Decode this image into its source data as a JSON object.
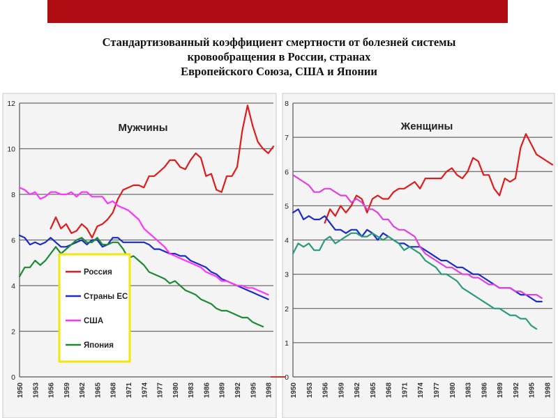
{
  "header": {
    "title_lines": [
      "Стандартизованный коэффициент смертности от болезней системы",
      "кровообращения в России, странах",
      "Европейского Союза, США и Японии"
    ]
  },
  "colors": {
    "Россия": "#e01b1b",
    "Страны ЕС": "#1a2bc8",
    "США": "#ff33ff",
    "Япония": "#1c8a30",
    "Россия_women": "#e01b1b",
    "Страны ЕС_women": "#1a2bc8",
    "США_women": "#e040e0",
    "Япония_women": "#2a9a7a"
  },
  "chart_data": [
    {
      "type": "line",
      "title": "Мужчины",
      "ylim": [
        0,
        12
      ],
      "yticks": [
        0,
        2,
        4,
        6,
        8,
        10,
        12
      ],
      "xlim": [
        1950,
        1999
      ],
      "xticks": [
        1950,
        1953,
        1956,
        1959,
        1962,
        1965,
        1968,
        1971,
        1974,
        1977,
        1980,
        1983,
        1986,
        1989,
        1992,
        1995,
        1998
      ],
      "grid": true,
      "legend": "inside-bottom-left",
      "series": [
        {
          "name": "Россия",
          "x": [
            1956,
            1957,
            1958,
            1959,
            1960,
            1961,
            1962,
            1963,
            1964,
            1965,
            1966,
            1967,
            1968,
            1969,
            1970,
            1971,
            1972,
            1973,
            1974,
            1975,
            1976,
            1977,
            1978,
            1979,
            1980,
            1981,
            1982,
            1983,
            1984,
            1985,
            1986,
            1987,
            1988,
            1989,
            1990,
            1991,
            1992,
            1993,
            1994,
            1995,
            1996,
            1997,
            1998,
            1999
          ],
          "values": [
            6.5,
            7.0,
            6.5,
            6.7,
            6.3,
            6.4,
            6.7,
            6.5,
            6.1,
            6.6,
            6.7,
            6.9,
            7.2,
            7.8,
            8.2,
            8.3,
            8.4,
            8.4,
            8.3,
            8.8,
            8.8,
            9.0,
            9.2,
            9.5,
            9.5,
            9.2,
            9.1,
            9.5,
            9.8,
            9.6,
            8.8,
            8.9,
            8.2,
            8.1,
            8.8,
            8.8,
            9.2,
            10.8,
            11.9,
            11.0,
            10.3,
            10.0,
            9.8,
            10.1
          ]
        },
        {
          "name": "Страны ЕС",
          "x": [
            1950,
            1951,
            1952,
            1953,
            1954,
            1955,
            1956,
            1957,
            1958,
            1959,
            1960,
            1961,
            1962,
            1963,
            1964,
            1965,
            1966,
            1967,
            1968,
            1969,
            1970,
            1971,
            1972,
            1973,
            1974,
            1975,
            1976,
            1977,
            1978,
            1979,
            1980,
            1981,
            1982,
            1983,
            1984,
            1985,
            1986,
            1987,
            1988,
            1989,
            1990,
            1991,
            1992,
            1993,
            1994,
            1995,
            1996,
            1997,
            1998
          ],
          "values": [
            6.2,
            6.1,
            5.8,
            5.9,
            5.8,
            5.9,
            6.1,
            5.9,
            5.7,
            5.7,
            5.8,
            5.9,
            6.0,
            5.8,
            6.0,
            6.0,
            5.7,
            5.8,
            6.1,
            6.1,
            5.9,
            5.9,
            5.9,
            5.9,
            5.9,
            5.8,
            5.6,
            5.6,
            5.5,
            5.4,
            5.4,
            5.3,
            5.3,
            5.1,
            5.0,
            4.9,
            4.8,
            4.6,
            4.5,
            4.3,
            4.2,
            4.1,
            4.0,
            3.9,
            3.8,
            3.7,
            3.6,
            3.5,
            3.4
          ]
        },
        {
          "name": "США",
          "x": [
            1950,
            1951,
            1952,
            1953,
            1954,
            1955,
            1956,
            1957,
            1958,
            1959,
            1960,
            1961,
            1962,
            1963,
            1964,
            1965,
            1966,
            1967,
            1968,
            1969,
            1970,
            1971,
            1972,
            1973,
            1974,
            1975,
            1976,
            1977,
            1978,
            1979,
            1980,
            1981,
            1982,
            1983,
            1984,
            1985,
            1986,
            1987,
            1988,
            1989,
            1990,
            1991,
            1992,
            1993,
            1994,
            1995,
            1996,
            1997,
            1998
          ],
          "values": [
            8.3,
            8.2,
            8.0,
            8.1,
            7.8,
            7.9,
            8.1,
            8.1,
            8.0,
            8.0,
            8.1,
            7.9,
            8.1,
            8.1,
            7.9,
            7.9,
            7.9,
            7.6,
            7.7,
            7.5,
            7.4,
            7.3,
            7.1,
            6.9,
            6.5,
            6.3,
            6.1,
            5.9,
            5.7,
            5.4,
            5.3,
            5.2,
            5.1,
            5.0,
            4.9,
            4.8,
            4.6,
            4.5,
            4.4,
            4.2,
            4.2,
            4.1,
            4.0,
            4.0,
            3.9,
            3.9,
            3.8,
            3.7,
            3.6
          ]
        },
        {
          "name": "Япония",
          "x": [
            1950,
            1951,
            1952,
            1953,
            1954,
            1955,
            1956,
            1957,
            1958,
            1959,
            1960,
            1961,
            1962,
            1963,
            1964,
            1965,
            1966,
            1967,
            1968,
            1969,
            1970,
            1971,
            1972,
            1973,
            1974,
            1975,
            1976,
            1977,
            1978,
            1979,
            1980,
            1981,
            1982,
            1983,
            1984,
            1985,
            1986,
            1987,
            1988,
            1989,
            1990,
            1991,
            1992,
            1993,
            1994,
            1995,
            1996,
            1997
          ],
          "values": [
            4.4,
            4.8,
            4.8,
            5.1,
            4.9,
            5.1,
            5.4,
            5.7,
            5.4,
            5.6,
            5.8,
            6.0,
            6.1,
            5.9,
            5.9,
            6.1,
            5.8,
            5.8,
            5.9,
            5.9,
            5.6,
            5.2,
            5.3,
            5.1,
            4.9,
            4.6,
            4.5,
            4.4,
            4.3,
            4.1,
            4.2,
            4.0,
            3.8,
            3.7,
            3.6,
            3.4,
            3.3,
            3.2,
            3.0,
            2.9,
            2.9,
            2.8,
            2.7,
            2.6,
            2.6,
            2.4,
            2.3,
            2.2
          ]
        }
      ]
    },
    {
      "type": "line",
      "title": "Женщины",
      "ylim": [
        0,
        8
      ],
      "yticks": [
        0,
        1,
        2,
        3,
        4,
        5,
        6,
        7,
        8
      ],
      "xlim": [
        1950,
        1999
      ],
      "xticks": [
        1950,
        1953,
        1956,
        1959,
        1962,
        1965,
        1968,
        1971,
        1974,
        1977,
        1980,
        1983,
        1986,
        1989,
        1992,
        1995,
        1998
      ],
      "grid": true,
      "series": [
        {
          "name": "Россия",
          "x": [
            1956,
            1957,
            1958,
            1959,
            1960,
            1961,
            1962,
            1963,
            1964,
            1965,
            1966,
            1967,
            1968,
            1969,
            1970,
            1971,
            1972,
            1973,
            1974,
            1975,
            1976,
            1977,
            1978,
            1979,
            1980,
            1981,
            1982,
            1983,
            1984,
            1985,
            1986,
            1987,
            1988,
            1989,
            1990,
            1991,
            1992,
            1993,
            1994,
            1995,
            1996,
            1997,
            1998,
            1999
          ],
          "values": [
            4.5,
            4.9,
            4.7,
            5.0,
            4.8,
            5.0,
            5.3,
            5.2,
            4.8,
            5.2,
            5.3,
            5.2,
            5.2,
            5.4,
            5.5,
            5.5,
            5.6,
            5.7,
            5.5,
            5.8,
            5.8,
            5.8,
            5.8,
            6.0,
            6.1,
            5.9,
            5.8,
            6.0,
            6.4,
            6.3,
            5.9,
            5.9,
            5.5,
            5.3,
            5.8,
            5.7,
            5.8,
            6.7,
            7.1,
            6.8,
            6.5,
            6.4,
            6.3,
            6.2
          ]
        },
        {
          "name": "Страны ЕС",
          "x": [
            1950,
            1951,
            1952,
            1953,
            1954,
            1955,
            1956,
            1957,
            1958,
            1959,
            1960,
            1961,
            1962,
            1963,
            1964,
            1965,
            1966,
            1967,
            1968,
            1969,
            1970,
            1971,
            1972,
            1973,
            1974,
            1975,
            1976,
            1977,
            1978,
            1979,
            1980,
            1981,
            1982,
            1983,
            1984,
            1985,
            1986,
            1987,
            1988,
            1989,
            1990,
            1991,
            1992,
            1993,
            1994,
            1995,
            1996,
            1997
          ],
          "values": [
            4.8,
            4.9,
            4.6,
            4.7,
            4.6,
            4.6,
            4.7,
            4.5,
            4.3,
            4.3,
            4.2,
            4.3,
            4.3,
            4.1,
            4.3,
            4.2,
            4.0,
            4.2,
            4.1,
            4.0,
            3.9,
            3.9,
            3.8,
            3.8,
            3.8,
            3.7,
            3.6,
            3.5,
            3.4,
            3.4,
            3.3,
            3.2,
            3.2,
            3.1,
            3.0,
            3.0,
            2.9,
            2.8,
            2.7,
            2.6,
            2.6,
            2.6,
            2.5,
            2.4,
            2.4,
            2.3,
            2.2,
            2.2
          ]
        },
        {
          "name": "США",
          "x": [
            1950,
            1951,
            1952,
            1953,
            1954,
            1955,
            1956,
            1957,
            1958,
            1959,
            1960,
            1961,
            1962,
            1963,
            1964,
            1965,
            1966,
            1967,
            1968,
            1969,
            1970,
            1971,
            1972,
            1973,
            1974,
            1975,
            1976,
            1977,
            1978,
            1979,
            1980,
            1981,
            1982,
            1983,
            1984,
            1985,
            1986,
            1987,
            1988,
            1989,
            1990,
            1991,
            1992,
            1993,
            1994,
            1995,
            1996,
            1997
          ],
          "values": [
            5.9,
            5.8,
            5.7,
            5.6,
            5.4,
            5.4,
            5.5,
            5.5,
            5.4,
            5.3,
            5.3,
            5.1,
            5.2,
            5.1,
            4.9,
            4.9,
            4.8,
            4.6,
            4.6,
            4.4,
            4.3,
            4.3,
            4.2,
            4.1,
            3.8,
            3.6,
            3.5,
            3.4,
            3.3,
            3.2,
            3.2,
            3.1,
            3.0,
            3.0,
            2.9,
            2.9,
            2.8,
            2.7,
            2.7,
            2.6,
            2.6,
            2.6,
            2.5,
            2.5,
            2.4,
            2.4,
            2.4,
            2.3
          ]
        },
        {
          "name": "Япония",
          "x": [
            1950,
            1951,
            1952,
            1953,
            1954,
            1955,
            1956,
            1957,
            1958,
            1959,
            1960,
            1961,
            1962,
            1963,
            1964,
            1965,
            1966,
            1967,
            1968,
            1969,
            1970,
            1971,
            1972,
            1973,
            1974,
            1975,
            1976,
            1977,
            1978,
            1979,
            1980,
            1981,
            1982,
            1983,
            1984,
            1985,
            1986,
            1987,
            1988,
            1989,
            1990,
            1991,
            1992,
            1993,
            1994,
            1995,
            1996
          ],
          "values": [
            3.6,
            3.9,
            3.8,
            3.9,
            3.7,
            3.7,
            4.0,
            4.1,
            3.9,
            4.0,
            4.1,
            4.2,
            4.2,
            4.1,
            4.1,
            4.2,
            4.1,
            4.0,
            4.1,
            4.0,
            3.9,
            3.7,
            3.8,
            3.7,
            3.6,
            3.4,
            3.3,
            3.2,
            3.0,
            3.0,
            2.9,
            2.8,
            2.6,
            2.5,
            2.4,
            2.3,
            2.2,
            2.1,
            2.0,
            2.0,
            1.9,
            1.8,
            1.8,
            1.7,
            1.7,
            1.5,
            1.4
          ]
        }
      ]
    }
  ]
}
